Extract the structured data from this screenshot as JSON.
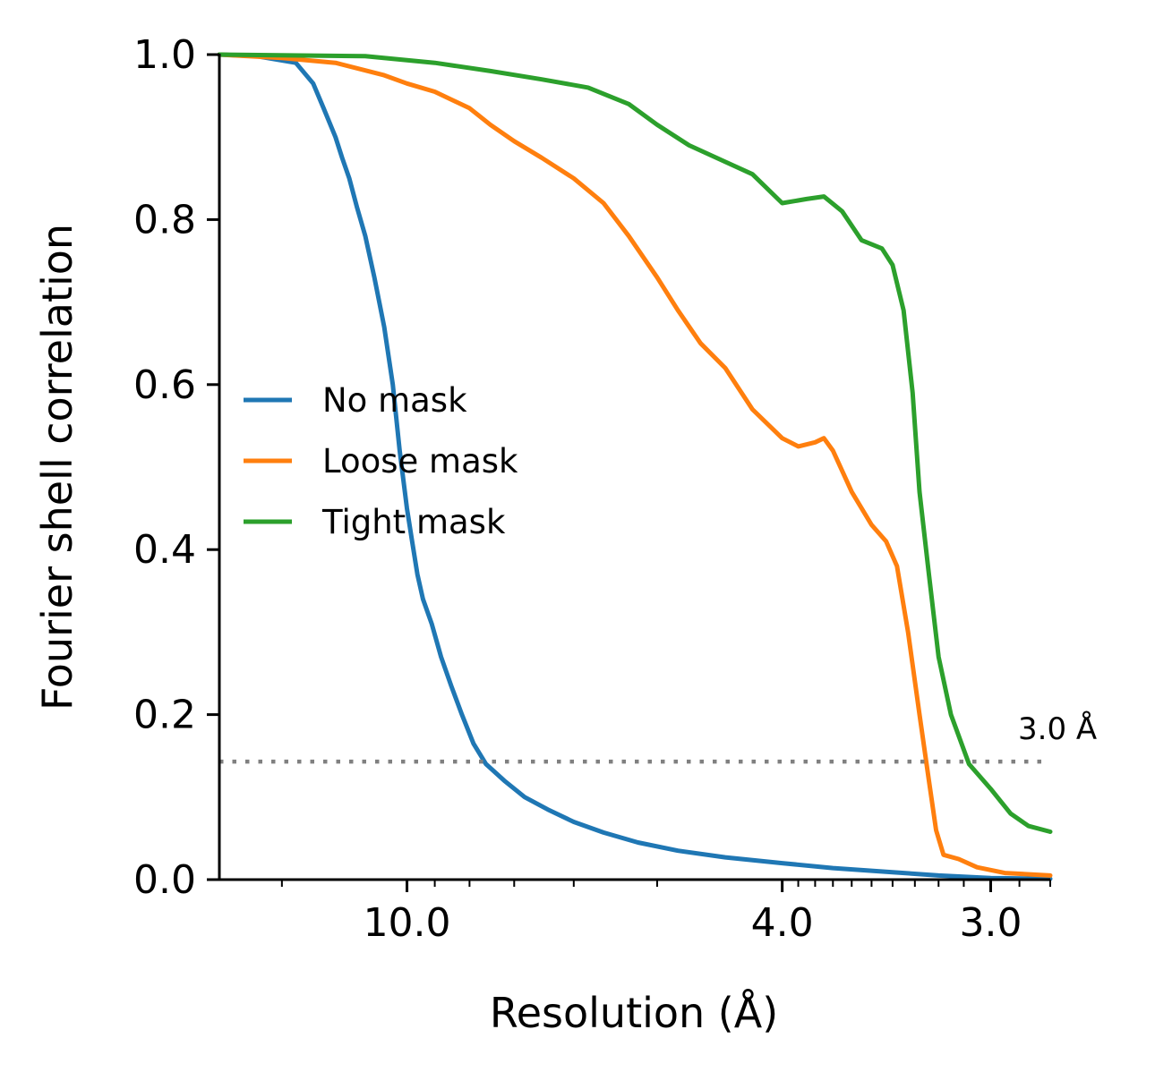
{
  "chart_data": {
    "type": "line",
    "title": "",
    "xlabel": "Resolution (Å)",
    "ylabel": "Fourier shell correlation",
    "x_scale": "reciprocal (spatial frequency 1/Å)",
    "xlim": [
      40.0,
      2.8
    ],
    "ylim": [
      0.0,
      1.0
    ],
    "x_ticks": [
      {
        "value": 10.0,
        "label": "10.0"
      },
      {
        "value": 4.0,
        "label": "4.0"
      },
      {
        "value": 3.0,
        "label": "3.0"
      }
    ],
    "y_ticks": [
      {
        "value": 0.0,
        "label": "0.0"
      },
      {
        "value": 0.2,
        "label": "0.2"
      },
      {
        "value": 0.4,
        "label": "0.4"
      },
      {
        "value": 0.6,
        "label": "0.6"
      },
      {
        "value": 0.8,
        "label": "0.8"
      },
      {
        "value": 1.0,
        "label": "1.0"
      }
    ],
    "grid": false,
    "legend_position": "center-left",
    "threshold": {
      "y": 0.143,
      "color": "#808080",
      "style": "dotted"
    },
    "annotation": {
      "text": "3.0 Å",
      "x": 2.9,
      "y": 0.16
    },
    "series": [
      {
        "name": "No mask",
        "color": "#1f77b4",
        "points": [
          [
            40.0,
            1.0
          ],
          [
            25.0,
            0.998
          ],
          [
            18.0,
            0.99
          ],
          [
            16.0,
            0.965
          ],
          [
            15.0,
            0.935
          ],
          [
            14.0,
            0.9
          ],
          [
            13.5,
            0.875
          ],
          [
            13.0,
            0.85
          ],
          [
            12.5,
            0.815
          ],
          [
            12.0,
            0.78
          ],
          [
            11.5,
            0.73
          ],
          [
            11.0,
            0.67
          ],
          [
            10.6,
            0.6
          ],
          [
            10.3,
            0.52
          ],
          [
            10.0,
            0.45
          ],
          [
            9.8,
            0.41
          ],
          [
            9.6,
            0.37
          ],
          [
            9.4,
            0.34
          ],
          [
            9.1,
            0.31
          ],
          [
            8.8,
            0.27
          ],
          [
            8.5,
            0.235
          ],
          [
            8.2,
            0.2
          ],
          [
            7.9,
            0.165
          ],
          [
            7.6,
            0.14
          ],
          [
            7.2,
            0.12
          ],
          [
            6.8,
            0.1
          ],
          [
            6.4,
            0.085
          ],
          [
            6.0,
            0.07
          ],
          [
            5.6,
            0.057
          ],
          [
            5.2,
            0.045
          ],
          [
            4.8,
            0.035
          ],
          [
            4.4,
            0.027
          ],
          [
            4.0,
            0.02
          ],
          [
            3.7,
            0.014
          ],
          [
            3.4,
            0.009
          ],
          [
            3.2,
            0.005
          ],
          [
            3.0,
            0.002
          ],
          [
            2.8,
            0.001
          ]
        ]
      },
      {
        "name": "Loose mask",
        "color": "#ff7f0e",
        "points": [
          [
            40.0,
            1.0
          ],
          [
            20.0,
            0.996
          ],
          [
            14.0,
            0.99
          ],
          [
            11.0,
            0.975
          ],
          [
            10.0,
            0.965
          ],
          [
            9.0,
            0.955
          ],
          [
            8.0,
            0.935
          ],
          [
            7.5,
            0.915
          ],
          [
            7.0,
            0.895
          ],
          [
            6.5,
            0.875
          ],
          [
            6.0,
            0.85
          ],
          [
            5.6,
            0.82
          ],
          [
            5.3,
            0.78
          ],
          [
            5.0,
            0.73
          ],
          [
            4.8,
            0.69
          ],
          [
            4.6,
            0.65
          ],
          [
            4.4,
            0.62
          ],
          [
            4.2,
            0.57
          ],
          [
            4.0,
            0.535
          ],
          [
            3.9,
            0.525
          ],
          [
            3.8,
            0.53
          ],
          [
            3.75,
            0.535
          ],
          [
            3.7,
            0.52
          ],
          [
            3.6,
            0.47
          ],
          [
            3.5,
            0.43
          ],
          [
            3.43,
            0.41
          ],
          [
            3.38,
            0.38
          ],
          [
            3.33,
            0.3
          ],
          [
            3.28,
            0.2
          ],
          [
            3.24,
            0.12
          ],
          [
            3.21,
            0.06
          ],
          [
            3.18,
            0.03
          ],
          [
            3.12,
            0.025
          ],
          [
            3.05,
            0.015
          ],
          [
            2.95,
            0.008
          ],
          [
            2.8,
            0.005
          ]
        ]
      },
      {
        "name": "Tight mask",
        "color": "#2ca02c",
        "points": [
          [
            40.0,
            1.0
          ],
          [
            12.0,
            0.998
          ],
          [
            9.0,
            0.99
          ],
          [
            7.5,
            0.98
          ],
          [
            6.5,
            0.97
          ],
          [
            5.8,
            0.96
          ],
          [
            5.3,
            0.94
          ],
          [
            5.0,
            0.915
          ],
          [
            4.7,
            0.89
          ],
          [
            4.4,
            0.87
          ],
          [
            4.2,
            0.855
          ],
          [
            4.0,
            0.82
          ],
          [
            3.85,
            0.825
          ],
          [
            3.75,
            0.828
          ],
          [
            3.65,
            0.81
          ],
          [
            3.55,
            0.775
          ],
          [
            3.45,
            0.765
          ],
          [
            3.4,
            0.745
          ],
          [
            3.35,
            0.69
          ],
          [
            3.31,
            0.59
          ],
          [
            3.28,
            0.47
          ],
          [
            3.24,
            0.37
          ],
          [
            3.2,
            0.27
          ],
          [
            3.15,
            0.2
          ],
          [
            3.08,
            0.14
          ],
          [
            3.0,
            0.11
          ],
          [
            2.93,
            0.08
          ],
          [
            2.87,
            0.065
          ],
          [
            2.8,
            0.058
          ]
        ]
      }
    ]
  }
}
